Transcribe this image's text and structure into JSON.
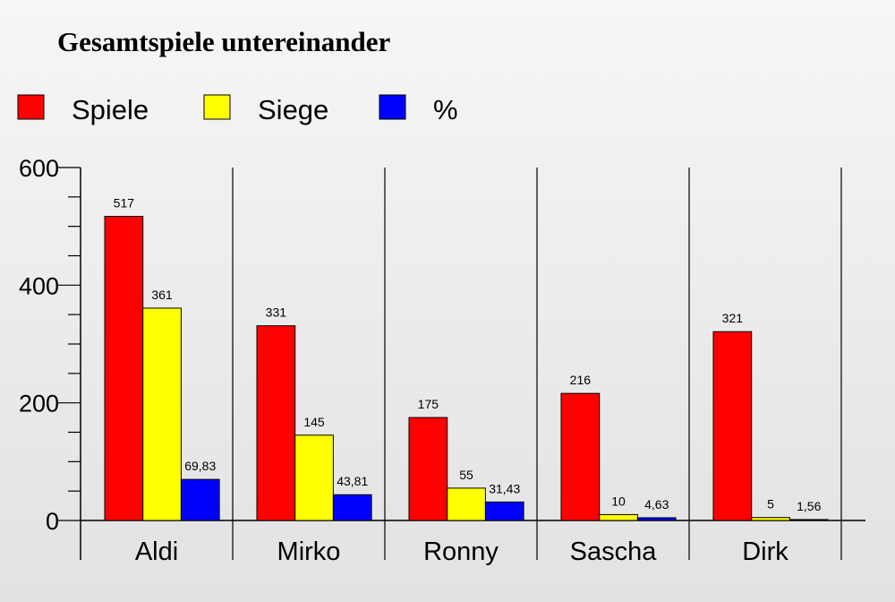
{
  "chart_data": {
    "type": "bar",
    "title": "Gesamtspiele untereinander",
    "categories": [
      "Aldi",
      "Mirko",
      "Ronny",
      "Sascha",
      "Dirk"
    ],
    "series": [
      {
        "name": "Spiele",
        "color": "#ff0000",
        "values": [
          517,
          331,
          175,
          216,
          321
        ],
        "labels": [
          "517",
          "331",
          "175",
          "216",
          "321"
        ]
      },
      {
        "name": "Siege",
        "color": "#ffff00",
        "values": [
          361,
          145,
          55,
          10,
          5
        ],
        "labels": [
          "361",
          "145",
          "55",
          "10",
          "5"
        ]
      },
      {
        "name": "%",
        "color": "#0000ff",
        "values": [
          69.83,
          43.81,
          31.43,
          4.63,
          1.56
        ],
        "labels": [
          "69,83",
          "43,81",
          "31,43",
          "4,63",
          "1,56"
        ]
      }
    ],
    "yticks": [
      "0",
      "200",
      "400",
      "600"
    ],
    "ylim": [
      0,
      600
    ],
    "grid": false,
    "legend_position": "top-left"
  }
}
